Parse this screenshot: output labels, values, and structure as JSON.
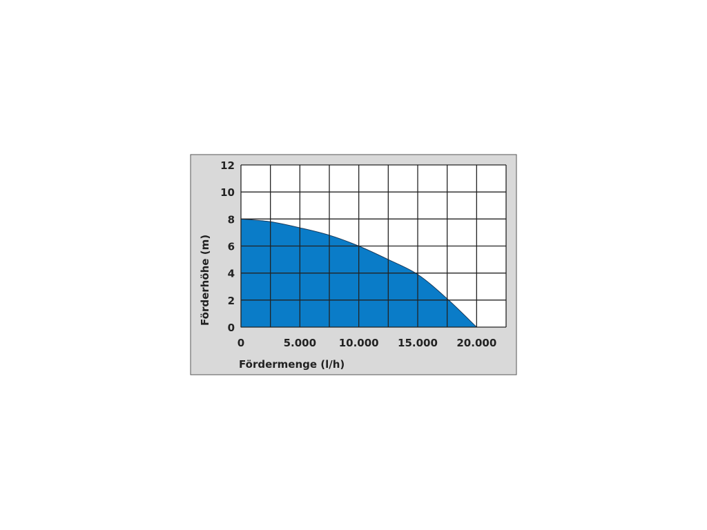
{
  "chart_data": {
    "type": "area",
    "title": "",
    "xlabel": "Fördermenge (l/h)",
    "ylabel": "Förderhöhe (m)",
    "xlim": [
      0,
      22500
    ],
    "ylim": [
      0,
      12
    ],
    "x_ticks": [
      0,
      5000,
      10000,
      15000,
      20000
    ],
    "x_tick_labels": [
      "0",
      "5.000",
      "10.000",
      "15.000",
      "20.000"
    ],
    "y_ticks": [
      0,
      2,
      4,
      6,
      8,
      10,
      12
    ],
    "y_tick_labels": [
      "0",
      "2",
      "4",
      "6",
      "8",
      "10",
      "12"
    ],
    "grid": true,
    "grid_x_step": 2500,
    "grid_y_step": 2,
    "series": [
      {
        "x": [
          0,
          2500,
          5000,
          7500,
          10000,
          12500,
          15000,
          17500,
          20000
        ],
        "y": [
          8.0,
          7.8,
          7.35,
          6.8,
          6.0,
          5.0,
          3.9,
          2.1,
          0
        ],
        "color": "#0a7cc8"
      }
    ],
    "colors": {
      "background": "#d9d9d9",
      "plot_background": "#ffffff",
      "grid": "#222222",
      "fill": "#0a7cc8"
    }
  }
}
